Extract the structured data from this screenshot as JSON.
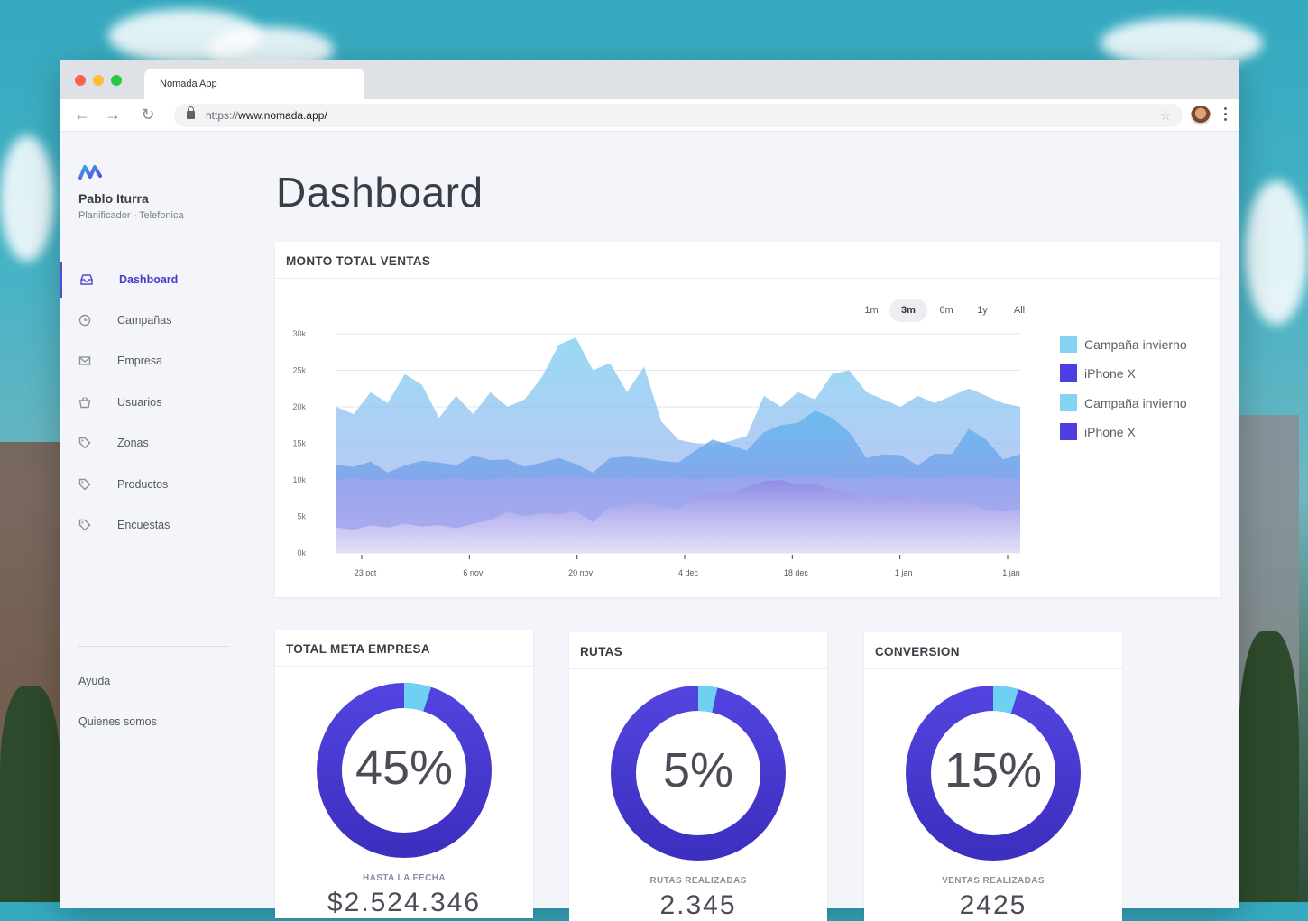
{
  "browser": {
    "tab_title": "Nomada App",
    "url_scheme": "https://",
    "url_rest": "www.nomada.app/"
  },
  "sidebar": {
    "user_name": "Pablo Iturra",
    "user_role": "Planificador - Telefonica",
    "items": [
      {
        "label": "Dashboard",
        "icon": "inbox-icon",
        "active": true
      },
      {
        "label": "Campañas",
        "icon": "clock-icon"
      },
      {
        "label": "Empresa",
        "icon": "mail-icon"
      },
      {
        "label": "Usuarios",
        "icon": "basket-icon"
      },
      {
        "label": "Zonas",
        "icon": "tag-icon"
      },
      {
        "label": "Productos",
        "icon": "tag-icon"
      },
      {
        "label": "Encuestas",
        "icon": "tag-icon"
      }
    ],
    "footer": [
      "Ayuda",
      "Quienes somos"
    ]
  },
  "page": {
    "title": "Dashboard"
  },
  "sales_card": {
    "title": "MONTO TOTAL VENTAS",
    "ranges": [
      "1m",
      "3m",
      "6m",
      "1y",
      "All"
    ],
    "active_range": "3m",
    "legend": [
      {
        "label": "Campaña invierno",
        "color": "#84d3f2"
      },
      {
        "label": "iPhone X",
        "color": "#4d3ee0"
      },
      {
        "label": "Campaña invierno",
        "color": "#84d3f2"
      },
      {
        "label": "iPhone X",
        "color": "#4d3ee0"
      }
    ]
  },
  "chart_data": {
    "type": "area",
    "title": "MONTO TOTAL VENTAS",
    "x_tick_labels": [
      "23 oct",
      "6 nov",
      "20 nov",
      "4 dec",
      "18 dec",
      "1 jan",
      "1 jan"
    ],
    "y_tick_labels": [
      "0k",
      "5k",
      "10k",
      "15k",
      "20k",
      "25k",
      "30k"
    ],
    "ylim": [
      0,
      30000
    ],
    "grid": true,
    "legend_position": "right",
    "series": [
      {
        "name": "Campaña invierno",
        "color": "#84d3f2",
        "values": [
          20000,
          19000,
          22000,
          20500,
          24500,
          23000,
          18500,
          21500,
          19000,
          22000,
          20000,
          21000,
          24000,
          28500,
          29500,
          25000,
          26000,
          22000,
          25500,
          18000,
          15500,
          15000,
          14800,
          15300,
          16000,
          21500,
          20000,
          22000,
          21000,
          24500,
          25000,
          22000,
          21000,
          20000,
          21500,
          20500,
          21500,
          22500,
          21500,
          20500,
          20000
        ]
      },
      {
        "name": "iPhone X",
        "color": "#4d3ee0",
        "values": [
          12000,
          11800,
          12500,
          11000,
          12000,
          12600,
          12400,
          12000,
          13300,
          12700,
          12800,
          11800,
          12400,
          13000,
          12200,
          11000,
          13000,
          13200,
          13000,
          12600,
          12400,
          14000,
          15500,
          14800,
          14000,
          16500,
          17500,
          17800,
          19500,
          18500,
          16500,
          13000,
          13500,
          13400,
          12000,
          13600,
          13500,
          17000,
          15500,
          12800,
          13500
        ]
      },
      {
        "name": "Campaña invierno",
        "color": "#84d3f2",
        "values": [
          10000,
          10300,
          10000,
          10200,
          10100,
          10000,
          10100,
          10300,
          10000,
          10100,
          10400,
          10200,
          10300,
          10600,
          10500,
          10300,
          10200,
          10400,
          10300,
          10200,
          10400,
          10100,
          10300,
          10200,
          10500,
          10400,
          10300,
          10600,
          10500,
          10400,
          10200,
          10300,
          10500,
          10400,
          10200,
          10300,
          10500,
          10600,
          10400,
          10300,
          10200
        ]
      },
      {
        "name": "iPhone X",
        "color": "#4d3ee0",
        "values": [
          3500,
          3200,
          3800,
          3500,
          4000,
          3600,
          3800,
          3400,
          4000,
          4500,
          5600,
          5000,
          5400,
          5300,
          5700,
          4200,
          6300,
          6500,
          7000,
          6400,
          6000,
          7800,
          8200,
          8200,
          9000,
          9800,
          10000,
          9300,
          9500,
          8700,
          8200,
          7500,
          7700,
          8000,
          7300,
          6600,
          7200,
          6800,
          5900,
          5800,
          6000
        ]
      }
    ]
  },
  "donuts": [
    {
      "title": "TOTAL META EMPRESA",
      "value": "45%",
      "percent": 45,
      "sublabel": "HASTA LA FECHA",
      "big": "$2.524.346"
    },
    {
      "title": "RUTAS",
      "value": "5%",
      "percent": 5,
      "sublabel": "RUTAS REALIZADAS",
      "big": "2.345"
    },
    {
      "title": "CONVERSION",
      "value": "15%",
      "percent": 15,
      "sublabel": "VENTAS REALIZADAS",
      "big": "2425"
    }
  ],
  "colors": {
    "accent": "#5b49d6",
    "light": "#84d3f2",
    "dark": "#4d3ee0"
  }
}
